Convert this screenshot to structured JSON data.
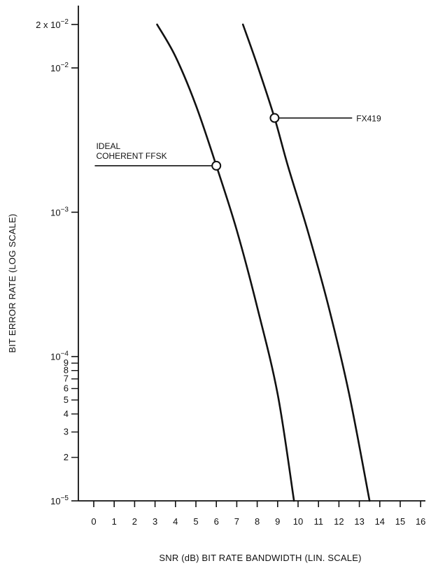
{
  "chart_data": {
    "type": "line",
    "xlabel": "SNR (dB) BIT RATE BANDWIDTH (LIN. SCALE)",
    "ylabel": "BIT ERROR RATE (LOG SCALE)",
    "x_scale": "linear",
    "y_scale": "log",
    "xlim": [
      0,
      16
    ],
    "ylim": [
      1e-05,
      0.02
    ],
    "grid": false,
    "x_ticks": [
      0,
      1,
      2,
      3,
      4,
      5,
      6,
      7,
      8,
      9,
      10,
      11,
      12,
      13,
      14,
      15,
      16
    ],
    "y_major_ticks": [
      {
        "value": 0.02,
        "mant": "2 x 10",
        "exp": "−2"
      },
      {
        "value": 0.01,
        "mant": "10",
        "exp": "−2"
      },
      {
        "value": 0.001,
        "mant": "10",
        "exp": "−3"
      },
      {
        "value": 0.0001,
        "mant": "10",
        "exp": "−4"
      },
      {
        "value": 1e-05,
        "mant": "10",
        "exp": "−5"
      }
    ],
    "y_minor_ticks": [
      {
        "value": 9e-05,
        "label": "9"
      },
      {
        "value": 8e-05,
        "label": "8"
      },
      {
        "value": 7e-05,
        "label": "7"
      },
      {
        "value": 6e-05,
        "label": "6"
      },
      {
        "value": 5e-05,
        "label": "5"
      },
      {
        "value": 4e-05,
        "label": "4"
      },
      {
        "value": 3e-05,
        "label": "3"
      },
      {
        "value": 2e-05,
        "label": "2"
      }
    ],
    "series": [
      {
        "name": "IDEAL COHERENT FFSK",
        "points": [
          [
            3.1,
            0.02
          ],
          [
            4.0,
            0.012
          ],
          [
            5.0,
            0.0055
          ],
          [
            6.0,
            0.0021
          ],
          [
            7.0,
            0.00075
          ],
          [
            8.0,
            0.00022
          ],
          [
            9.0,
            5.5e-05
          ],
          [
            9.8,
            1e-05
          ]
        ]
      },
      {
        "name": "FX419",
        "points": [
          [
            7.3,
            0.02
          ],
          [
            8.0,
            0.0105
          ],
          [
            8.85,
            0.0045
          ],
          [
            9.5,
            0.0021
          ],
          [
            10.5,
            0.00072
          ],
          [
            11.5,
            0.00022
          ],
          [
            12.5,
            5.5e-05
          ],
          [
            13.5,
            1e-05
          ]
        ]
      }
    ],
    "annotations": [
      {
        "lines": [
          "IDEAL",
          "COHERENT FFSK"
        ],
        "series": 0,
        "marker": [
          6.0,
          0.0021
        ],
        "label_x": 0.05
      },
      {
        "lines": [
          "FX419"
        ],
        "series": 1,
        "marker": [
          8.85,
          0.0045
        ],
        "label_x": 13.4
      }
    ]
  }
}
